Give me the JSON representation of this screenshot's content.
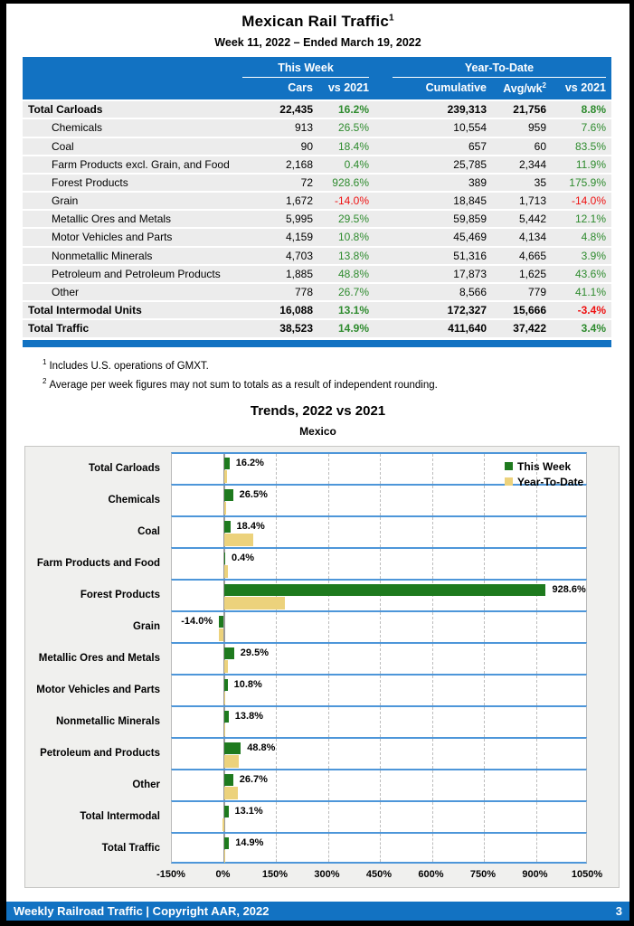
{
  "page": {
    "title": "Mexican Rail Traffic",
    "title_superscript": "1",
    "subtitle": "Week 11, 2022 – Ended March 19, 2022",
    "footer": {
      "text": "Weekly Railroad Traffic | Copyright AAR, 2022",
      "page_number": "3"
    }
  },
  "colors": {
    "header_blue": "#1272C2",
    "chart_separator_blue": "#4D96D9",
    "bar_green": "#1E7A1E",
    "bar_tan": "#ECD27C",
    "positive_green": "#2E8B2E",
    "negative_red": "#EE1111",
    "table_row_gray": "#ECECEC",
    "chart_panel_gray": "#F0F0EE"
  },
  "table": {
    "group_this_week": "This Week",
    "group_ytd": "Year-To-Date",
    "col_cars": "Cars",
    "col_vs_2021_week": "vs 2021",
    "col_cumulative": "Cumulative",
    "col_avg_wk": "Avg/wk",
    "col_avg_wk_superscript": "2",
    "col_vs_2021_ytd": "vs 2021",
    "rows": [
      {
        "label": "Total Carloads",
        "bold": true,
        "cars": "22,435",
        "vs_week": "16.2%",
        "cumulative": "239,313",
        "avg_wk": "21,756",
        "vs_ytd": "8.8%"
      },
      {
        "label": "Chemicals",
        "bold": false,
        "cars": "913",
        "vs_week": "26.5%",
        "cumulative": "10,554",
        "avg_wk": "959",
        "vs_ytd": "7.6%"
      },
      {
        "label": "Coal",
        "bold": false,
        "cars": "90",
        "vs_week": "18.4%",
        "cumulative": "657",
        "avg_wk": "60",
        "vs_ytd": "83.5%"
      },
      {
        "label": "Farm Products excl. Grain, and Food",
        "bold": false,
        "cars": "2,168",
        "vs_week": "0.4%",
        "cumulative": "25,785",
        "avg_wk": "2,344",
        "vs_ytd": "11.9%"
      },
      {
        "label": "Forest Products",
        "bold": false,
        "cars": "72",
        "vs_week": "928.6%",
        "cumulative": "389",
        "avg_wk": "35",
        "vs_ytd": "175.9%"
      },
      {
        "label": "Grain",
        "bold": false,
        "cars": "1,672",
        "vs_week": "-14.0%",
        "cumulative": "18,845",
        "avg_wk": "1,713",
        "vs_ytd": "-14.0%"
      },
      {
        "label": "Metallic Ores and Metals",
        "bold": false,
        "cars": "5,995",
        "vs_week": "29.5%",
        "cumulative": "59,859",
        "avg_wk": "5,442",
        "vs_ytd": "12.1%"
      },
      {
        "label": "Motor Vehicles and Parts",
        "bold": false,
        "cars": "4,159",
        "vs_week": "10.8%",
        "cumulative": "45,469",
        "avg_wk": "4,134",
        "vs_ytd": "4.8%"
      },
      {
        "label": "Nonmetallic Minerals",
        "bold": false,
        "cars": "4,703",
        "vs_week": "13.8%",
        "cumulative": "51,316",
        "avg_wk": "4,665",
        "vs_ytd": "3.9%"
      },
      {
        "label": "Petroleum and Petroleum Products",
        "bold": false,
        "cars": "1,885",
        "vs_week": "48.8%",
        "cumulative": "17,873",
        "avg_wk": "1,625",
        "vs_ytd": "43.6%"
      },
      {
        "label": "Other",
        "bold": false,
        "cars": "778",
        "vs_week": "26.7%",
        "cumulative": "8,566",
        "avg_wk": "779",
        "vs_ytd": "41.1%"
      },
      {
        "label": "Total Intermodal Units",
        "bold": true,
        "cars": "16,088",
        "vs_week": "13.1%",
        "cumulative": "172,327",
        "avg_wk": "15,666",
        "vs_ytd": "-3.4%"
      },
      {
        "label": "Total Traffic",
        "bold": true,
        "cars": "38,523",
        "vs_week": "14.9%",
        "cumulative": "411,640",
        "avg_wk": "37,422",
        "vs_ytd": "3.4%"
      }
    ]
  },
  "footnotes": [
    {
      "sup": "1",
      "text": "Includes U.S. operations of GMXT."
    },
    {
      "sup": "2",
      "text": "Average per week figures may not sum to totals as a result of independent rounding."
    }
  ],
  "chart_data": {
    "type": "bar",
    "orientation": "horizontal",
    "title": "Trends, 2022 vs 2021",
    "subtitle": "Mexico",
    "categories": [
      "Total Carloads",
      "Chemicals",
      "Coal",
      "Farm Products and Food",
      "Forest Products",
      "Grain",
      "Metallic Ores and Metals",
      "Motor Vehicles and Parts",
      "Nonmetallic Minerals",
      "Petroleum and Products",
      "Other",
      "Total Intermodal",
      "Total Traffic"
    ],
    "series": [
      {
        "name": "This Week",
        "color": "#1E7A1E",
        "values": [
          16.2,
          26.5,
          18.4,
          0.4,
          928.6,
          -14.0,
          29.5,
          10.8,
          13.8,
          48.8,
          26.7,
          13.1,
          14.9
        ]
      },
      {
        "name": "Year-To-Date",
        "color": "#ECD27C",
        "values": [
          8.8,
          7.6,
          83.5,
          11.9,
          175.9,
          -14.0,
          12.1,
          4.8,
          3.9,
          43.6,
          41.1,
          -3.4,
          3.4
        ]
      }
    ],
    "bar_labels": [
      "16.2%",
      "26.5%",
      "18.4%",
      "0.4%",
      "928.6%",
      "-14.0%",
      "29.5%",
      "10.8%",
      "13.8%",
      "48.8%",
      "26.7%",
      "13.1%",
      "14.9%"
    ],
    "xlim": [
      -150,
      1050
    ],
    "xticks": [
      "-150%",
      "0%",
      "150%",
      "300%",
      "450%",
      "600%",
      "750%",
      "900%",
      "1050%"
    ],
    "xtick_values": [
      -150,
      0,
      150,
      300,
      450,
      600,
      750,
      900,
      1050
    ],
    "grid": "dashed-vertical-gridlines",
    "legend_position": "top-right"
  }
}
